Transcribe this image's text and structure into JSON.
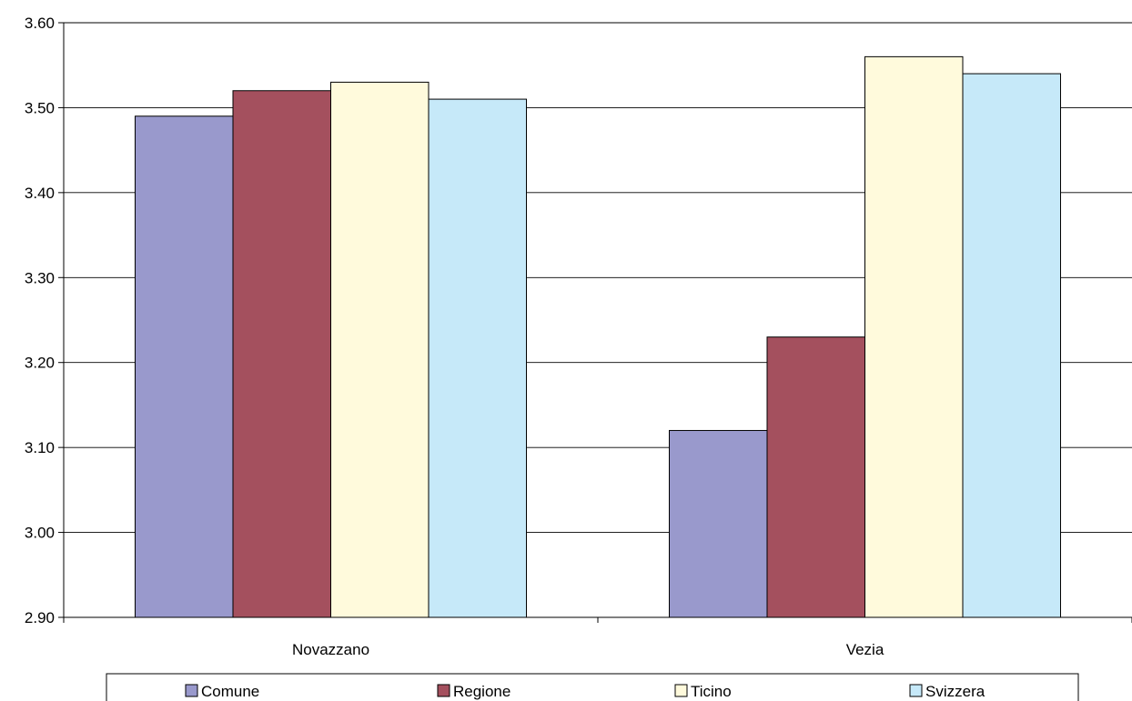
{
  "chart_data": {
    "type": "bar",
    "title": "",
    "xlabel": "",
    "ylabel": "",
    "categories": [
      "Novazzano",
      "Vezia"
    ],
    "series": [
      {
        "name": "Comune",
        "values": [
          3.49,
          3.12
        ],
        "color": "#9999cc"
      },
      {
        "name": "Regione",
        "values": [
          3.52,
          3.23
        ],
        "color": "#a4505e"
      },
      {
        "name": "Ticino",
        "values": [
          3.53,
          3.56
        ],
        "color": "#fffadc"
      },
      {
        "name": "Svizzera",
        "values": [
          3.51,
          3.54
        ],
        "color": "#c6e9f9"
      }
    ],
    "ylim": [
      2.9,
      3.6
    ],
    "yticks": [
      "2.90",
      "3.00",
      "3.10",
      "3.20",
      "3.30",
      "3.40",
      "3.50",
      "3.60"
    ],
    "grid": true,
    "legend": "bottom"
  }
}
